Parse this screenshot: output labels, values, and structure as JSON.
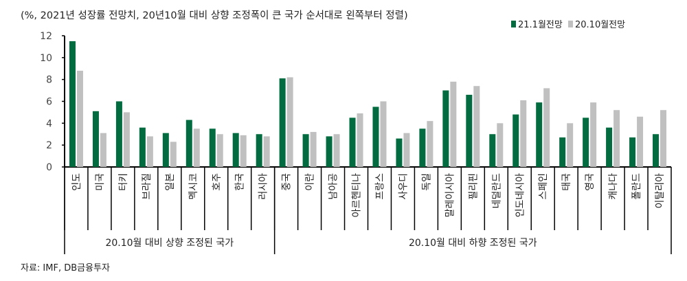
{
  "chart_data": {
    "type": "bar",
    "title": "(%, 2021년 성장률 전망치, 20년10월 대비 상향 조정폭이 큰 국가 순서대로 왼쪽부터 정렬)",
    "categories": [
      "인도",
      "미국",
      "터키",
      "브라질",
      "일본",
      "멕시코",
      "호주",
      "한국",
      "러시아",
      "중국",
      "이란",
      "남아공",
      "아르헨티나",
      "프랑스",
      "사우디",
      "독일",
      "말레이시아",
      "필리핀",
      "네덜란드",
      "인도네시아",
      "스페인",
      "태국",
      "영국",
      "캐나다",
      "폴란드",
      "이탈리아"
    ],
    "series": [
      {
        "name": "21.1월전망",
        "color": "#026b3f",
        "values": [
          11.5,
          5.1,
          6.0,
          3.6,
          3.1,
          4.3,
          3.5,
          3.1,
          3.0,
          8.1,
          3.0,
          2.8,
          4.5,
          5.5,
          2.6,
          3.5,
          7.0,
          6.6,
          3.0,
          4.8,
          5.9,
          2.7,
          4.5,
          3.6,
          2.7,
          3.0
        ]
      },
      {
        "name": "20.10월전망",
        "color": "#c0c0c0",
        "values": [
          8.8,
          3.1,
          5.0,
          2.8,
          2.3,
          3.5,
          3.0,
          2.9,
          2.8,
          8.2,
          3.2,
          3.0,
          4.9,
          6.0,
          3.1,
          4.2,
          7.8,
          7.4,
          4.0,
          6.1,
          7.2,
          4.0,
          5.9,
          5.2,
          4.6,
          5.2
        ]
      }
    ],
    "groups": [
      {
        "label": "20.10월 대비 상향 조정된 국가",
        "count": 9
      },
      {
        "label": "20.10월 대비 하향 조정된 국가",
        "count": 17
      }
    ],
    "ylim": [
      0,
      12
    ],
    "yticks": [
      0,
      2,
      4,
      6,
      8,
      10,
      12
    ],
    "legend_position": "top-right",
    "grid": false
  },
  "source": "자료: IMF, DB금융투자"
}
